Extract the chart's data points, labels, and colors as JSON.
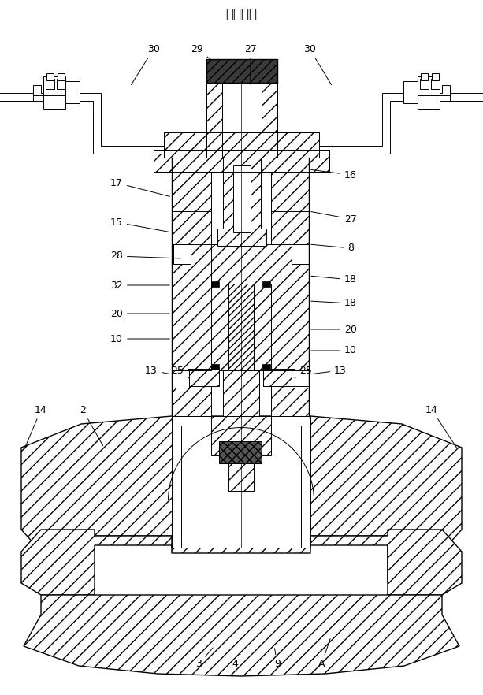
{
  "title": "放松状态",
  "bg_color": "#ffffff",
  "line_color": "#000000",
  "labels": [
    [
      "30",
      195,
      62,
      165,
      110
    ],
    [
      "29",
      250,
      62,
      272,
      79
    ],
    [
      "27",
      318,
      62,
      318,
      110
    ],
    [
      "30",
      393,
      62,
      422,
      110
    ],
    [
      "17",
      148,
      232,
      218,
      250
    ],
    [
      "16",
      445,
      222,
      392,
      215
    ],
    [
      "15",
      148,
      282,
      218,
      295
    ],
    [
      "27",
      445,
      278,
      392,
      268
    ],
    [
      "28",
      148,
      325,
      232,
      328
    ],
    [
      "8",
      445,
      315,
      392,
      310
    ],
    [
      "32",
      148,
      362,
      218,
      362
    ],
    [
      "18",
      445,
      355,
      392,
      350
    ],
    [
      "20",
      148,
      398,
      218,
      398
    ],
    [
      "18",
      445,
      385,
      392,
      382
    ],
    [
      "10",
      148,
      430,
      218,
      430
    ],
    [
      "20",
      445,
      418,
      392,
      418
    ],
    [
      "13",
      192,
      470,
      218,
      475
    ],
    [
      "25",
      225,
      470,
      240,
      480
    ],
    [
      "10",
      445,
      445,
      392,
      445
    ],
    [
      "25",
      388,
      470,
      374,
      480
    ],
    [
      "13",
      432,
      470,
      392,
      475
    ],
    [
      "2",
      105,
      520,
      132,
      568
    ],
    [
      "14",
      52,
      520,
      30,
      572
    ],
    [
      "14",
      548,
      520,
      582,
      572
    ],
    [
      "3",
      252,
      843,
      272,
      820
    ],
    [
      "4",
      298,
      843,
      305,
      830
    ],
    [
      "9",
      352,
      843,
      348,
      820
    ],
    [
      "A",
      408,
      843,
      420,
      808
    ]
  ]
}
